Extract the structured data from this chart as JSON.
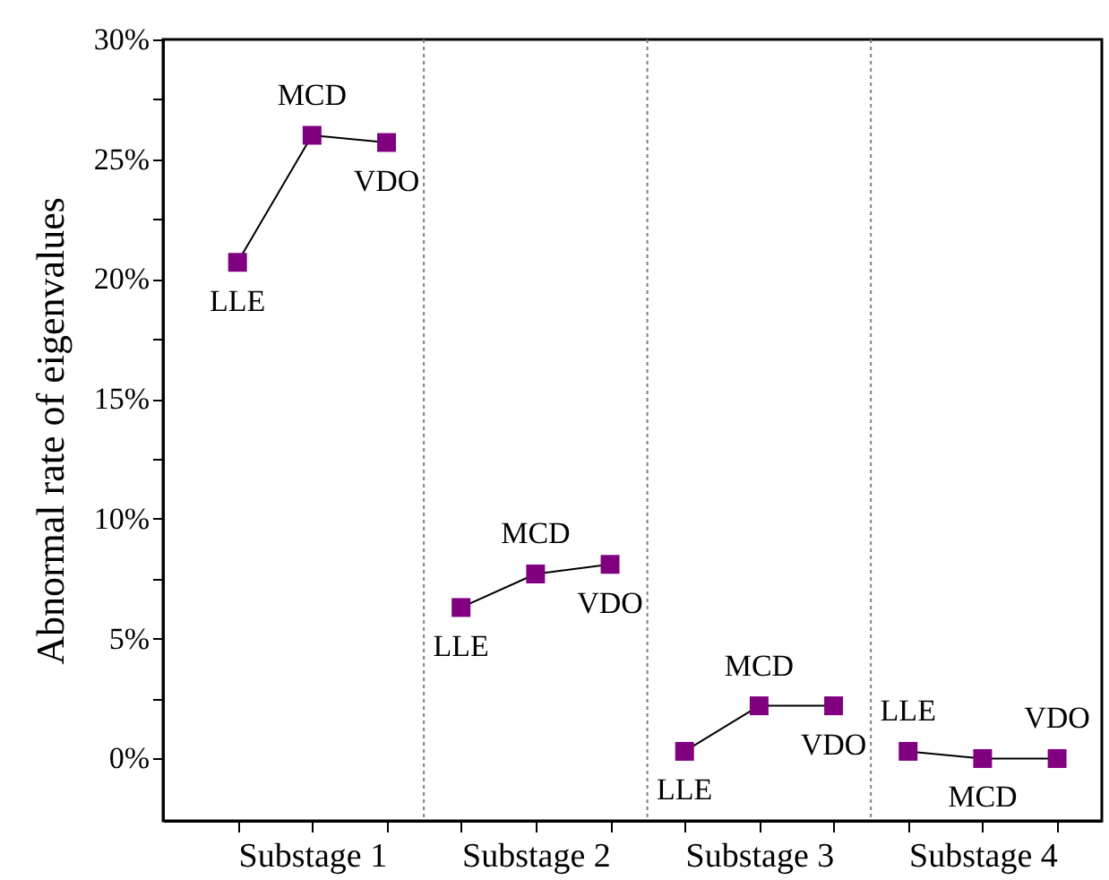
{
  "chart_data": {
    "type": "line",
    "ylabel": "Abnormal rate of eigenvalues",
    "marker": "square",
    "line_style": "solid",
    "grid": false,
    "legend": false,
    "categories": [
      null,
      "Substage 1",
      null,
      null,
      "Substage 2",
      null,
      null,
      "Substage 3",
      null,
      null,
      "Substage 4",
      null
    ],
    "ylim": [
      -2.6,
      30
    ],
    "yticks": [
      {
        "value": 0,
        "label": "0%"
      },
      {
        "value": 2.5,
        "label": null
      },
      {
        "value": 5,
        "label": "5%"
      },
      {
        "value": 7.5,
        "label": null
      },
      {
        "value": 10,
        "label": "10%"
      },
      {
        "value": 12.5,
        "label": null
      },
      {
        "value": 15,
        "label": "15%"
      },
      {
        "value": 17.5,
        "label": null
      },
      {
        "value": 20,
        "label": "20%"
      },
      {
        "value": 22.5,
        "label": null
      },
      {
        "value": 25,
        "label": "25%"
      },
      {
        "value": 27.5,
        "label": null
      },
      {
        "value": 30,
        "label": "30%"
      }
    ],
    "series": [
      {
        "color": "#800080",
        "values": [
          20.7,
          26.0,
          25.7,
          null,
          null,
          null,
          null,
          null,
          null,
          null,
          null,
          null
        ]
      },
      {
        "color": "#800080",
        "values": [
          null,
          null,
          null,
          6.3,
          7.7,
          8.1,
          null,
          null,
          null,
          null,
          null,
          null
        ]
      },
      {
        "color": "#800080",
        "values": [
          null,
          null,
          null,
          null,
          null,
          null,
          0.3,
          2.2,
          2.2,
          null,
          null,
          null
        ]
      },
      {
        "color": "#800080",
        "values": [
          null,
          null,
          null,
          null,
          null,
          null,
          null,
          null,
          null,
          0.3,
          0,
          0
        ]
      }
    ],
    "annotations": [
      {
        "text": "LLE",
        "y": 20.7
      },
      {
        "text": "MCD",
        "y": 26.0
      },
      {
        "text": "VDO",
        "y": 25.7
      },
      {
        "text": "LLE",
        "y": 6.3
      },
      {
        "text": "MCD",
        "y": 7.7
      },
      {
        "text": "VDO",
        "y": 8.1
      },
      {
        "text": "LLE",
        "y": 0.3
      },
      {
        "text": "MCD",
        "y": 2.2
      },
      {
        "text": "VDO",
        "y": 2.2
      },
      {
        "text": "LLE",
        "y": 0.3
      },
      {
        "text": "MCD",
        "y": 0
      },
      {
        "text": "VDO",
        "y": 0
      }
    ]
  }
}
